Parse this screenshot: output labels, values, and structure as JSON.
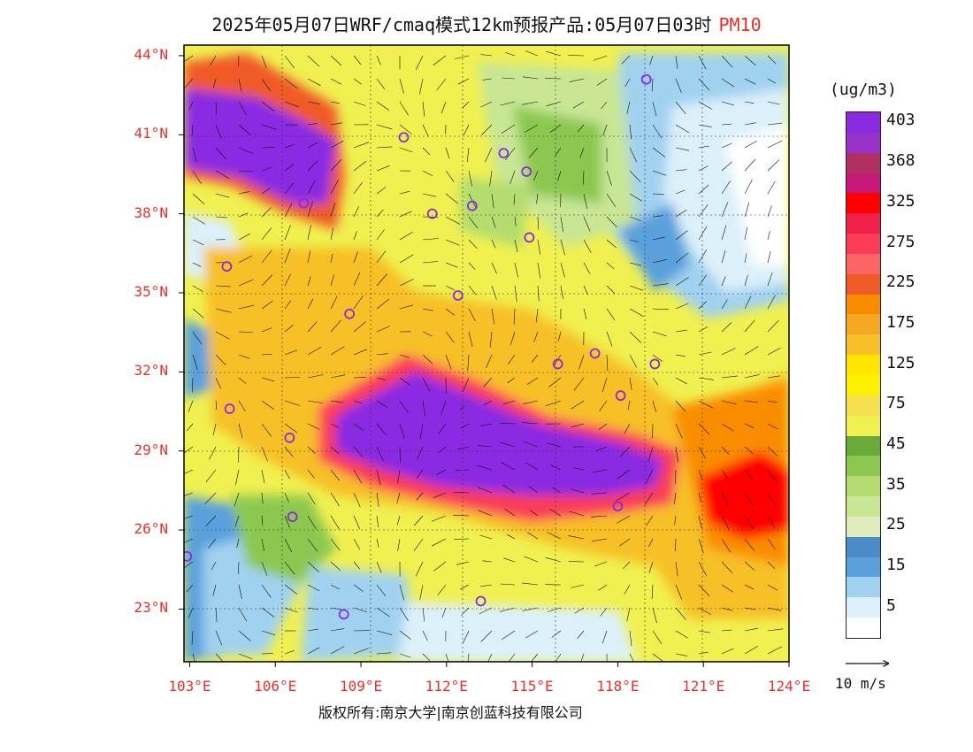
{
  "title": {
    "main": "2025年05月07日WRF/cmaq模式12km预报产品:05月07日03时",
    "pollutant": "PM10"
  },
  "map": {
    "lat_labels": [
      "44°N",
      "41°N",
      "38°N",
      "35°N",
      "32°N",
      "29°N",
      "26°N",
      "23°N"
    ],
    "lon_labels": [
      "103°E",
      "106°E",
      "109°E",
      "112°E",
      "115°E",
      "118°E",
      "121°E",
      "124°E"
    ],
    "lat_range": [
      21,
      44.4
    ],
    "lon_range": [
      102.8,
      124
    ]
  },
  "legend": {
    "unit": "(ug/m3)",
    "levels": [
      {
        "label": "403",
        "color": "#8a2be2"
      },
      {
        "label": "",
        "color": "#9932cc"
      },
      {
        "label": "368",
        "color": "#b03060"
      },
      {
        "label": "",
        "color": "#c81878"
      },
      {
        "label": "325",
        "color": "#ff0000"
      },
      {
        "label": "",
        "color": "#f0204a"
      },
      {
        "label": "275",
        "color": "#fa3c58"
      },
      {
        "label": "",
        "color": "#fa6464"
      },
      {
        "label": "225",
        "color": "#f05a28"
      },
      {
        "label": "",
        "color": "#fa8c00"
      },
      {
        "label": "175",
        "color": "#f5a623"
      },
      {
        "label": "",
        "color": "#f7c028"
      },
      {
        "label": "125",
        "color": "#ffe400"
      },
      {
        "label": "",
        "color": "#fff000"
      },
      {
        "label": "75",
        "color": "#f5e050"
      },
      {
        "label": "",
        "color": "#f0f050"
      },
      {
        "label": "45",
        "color": "#6aaa3a"
      },
      {
        "label": "",
        "color": "#8cc850"
      },
      {
        "label": "35",
        "color": "#b4dc6e"
      },
      {
        "label": "",
        "color": "#c8e694"
      },
      {
        "label": "25",
        "color": "#e1ebbe"
      },
      {
        "label": "",
        "color": "#4a8cc8"
      },
      {
        "label": "15",
        "color": "#5aa0dc"
      },
      {
        "label": "",
        "color": "#a0d2f0"
      },
      {
        "label": "5",
        "color": "#dcf0fa"
      },
      {
        "label": "",
        "color": "#ffffff"
      }
    ]
  },
  "wind_scale": {
    "label": "10 m/s"
  },
  "stations": [
    {
      "lon": 119.0,
      "lat": 43.1
    },
    {
      "lon": 110.5,
      "lat": 40.9
    },
    {
      "lon": 114.0,
      "lat": 40.3
    },
    {
      "lon": 114.8,
      "lat": 39.6
    },
    {
      "lon": 107.0,
      "lat": 38.4
    },
    {
      "lon": 111.5,
      "lat": 38.0
    },
    {
      "lon": 112.9,
      "lat": 38.3
    },
    {
      "lon": 114.9,
      "lat": 37.1
    },
    {
      "lon": 104.3,
      "lat": 36.0
    },
    {
      "lon": 112.4,
      "lat": 34.9
    },
    {
      "lon": 108.6,
      "lat": 34.2
    },
    {
      "lon": 115.9,
      "lat": 32.3
    },
    {
      "lon": 117.2,
      "lat": 32.7
    },
    {
      "lon": 119.3,
      "lat": 32.3
    },
    {
      "lon": 118.1,
      "lat": 31.1
    },
    {
      "lon": 104.4,
      "lat": 30.6
    },
    {
      "lon": 112.8,
      "lat": 30.7
    },
    {
      "lon": 106.5,
      "lat": 29.5
    },
    {
      "lon": 115.0,
      "lat": 29.0
    },
    {
      "lon": 112.4,
      "lat": 28.3
    },
    {
      "lon": 118.0,
      "lat": 26.9
    },
    {
      "lon": 106.6,
      "lat": 26.5
    },
    {
      "lon": 102.9,
      "lat": 25.0
    },
    {
      "lon": 108.4,
      "lat": 22.8
    },
    {
      "lon": 113.2,
      "lat": 23.3
    }
  ],
  "copyright": "版权所有:南京大学|南京创蓝科技有限公司"
}
